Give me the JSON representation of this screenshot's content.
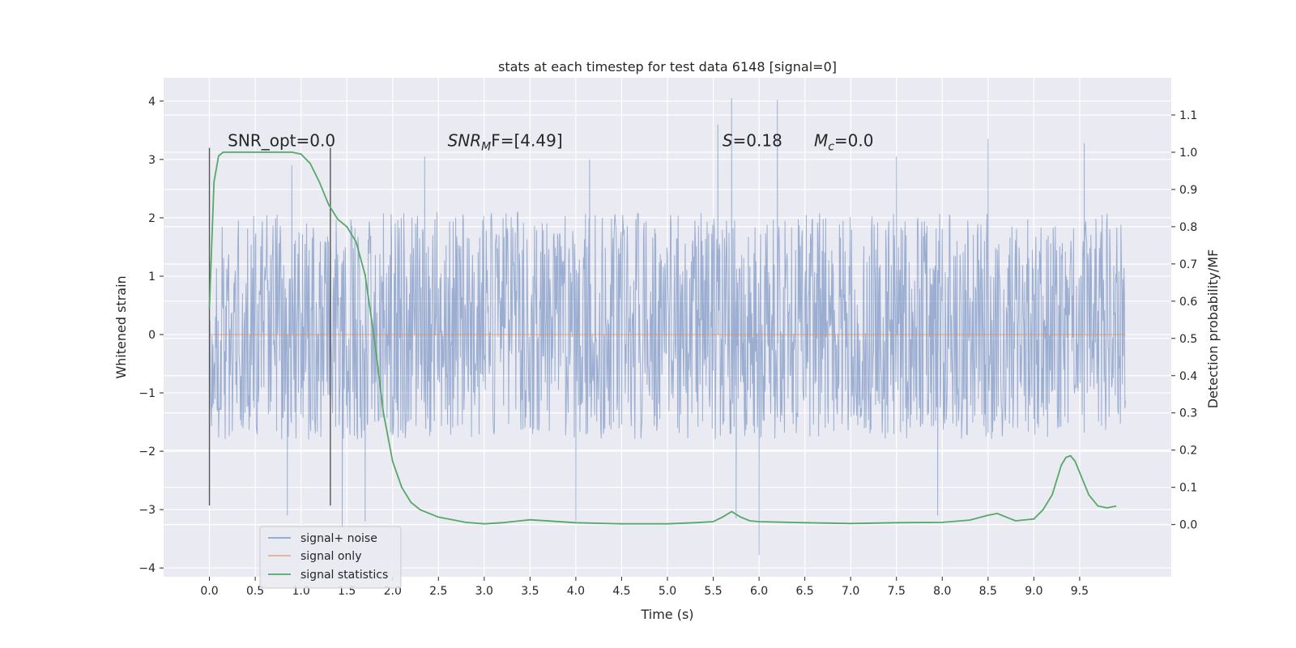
{
  "chart_data": {
    "type": "line",
    "title": "stats at each timestep for test data 6148 [signal=0]",
    "xlabel": "Time (s)",
    "ylabel": "Whitened strain",
    "y2label": "Detection probability/MF",
    "xlim": [
      -0.5,
      10.5
    ],
    "ylim": [
      -4.15,
      4.4
    ],
    "y2lim": [
      -0.14,
      1.2
    ],
    "x_ticks": [
      "0.0",
      "0.5",
      "1.0",
      "1.5",
      "2.0",
      "2.5",
      "3.0",
      "3.5",
      "4.0",
      "4.5",
      "5.0",
      "5.5",
      "6.0",
      "6.5",
      "7.0",
      "7.5",
      "8.0",
      "8.5",
      "9.0",
      "9.5"
    ],
    "y_ticks": [
      "4",
      "3",
      "2",
      "1",
      "0",
      "−1",
      "−2",
      "−3",
      "−4"
    ],
    "y2_ticks": [
      "1.1",
      "1.0",
      "0.9",
      "0.8",
      "0.7",
      "0.6",
      "0.5",
      "0.4",
      "0.3",
      "0.2",
      "0.1",
      "0.0"
    ],
    "grid": true,
    "legend_position": "lower-left",
    "annotations": [
      {
        "text": "SNR_opt=0.0",
        "x": 0.2,
        "y": 3.2
      },
      {
        "math": [
          "SNR",
          "M",
          "F=[4.49]"
        ],
        "x": 2.6,
        "y": 3.2
      },
      {
        "math": [
          "S",
          "",
          "=0.18"
        ],
        "x": 5.6,
        "y": 3.2
      },
      {
        "math": [
          "M",
          "c",
          "=0.0"
        ],
        "x": 6.6,
        "y": 3.2
      }
    ],
    "markers": [
      {
        "x": 0.0,
        "y_from": -2.93,
        "y_to": 3.2
      },
      {
        "x": 1.32,
        "y_from": -2.93,
        "y_to": 3.2
      }
    ],
    "series": [
      {
        "name": "signal+ noise",
        "axis": "left",
        "color": "#4c72b0",
        "x_range": [
          0.0,
          10.0
        ],
        "core_range": [
          -1.1,
          1.35
        ],
        "typical_range": [
          -1.8,
          2.1
        ],
        "peaks": [
          {
            "x": 5.7,
            "y": 4.05
          },
          {
            "x": 6.2,
            "y": 4.02
          },
          {
            "x": 5.55,
            "y": 3.6
          },
          {
            "x": 8.5,
            "y": 3.35
          },
          {
            "x": 9.55,
            "y": 3.28
          },
          {
            "x": 0.9,
            "y": 2.9
          },
          {
            "x": 2.35,
            "y": 3.05
          },
          {
            "x": 4.15,
            "y": 3.0
          },
          {
            "x": 7.5,
            "y": 3.05
          },
          {
            "x": 6.0,
            "y": -3.78
          },
          {
            "x": 1.45,
            "y": -3.3
          },
          {
            "x": 1.7,
            "y": -3.2
          },
          {
            "x": 5.75,
            "y": -3.15
          },
          {
            "x": 0.85,
            "y": -3.1
          },
          {
            "x": 7.95,
            "y": -3.1
          },
          {
            "x": 4.0,
            "y": -3.2
          }
        ]
      },
      {
        "name": "signal only",
        "axis": "left",
        "color": "#dd8452",
        "x": [
          0.0,
          10.0
        ],
        "y": [
          0.0,
          0.0
        ]
      },
      {
        "name": "signal statistics",
        "axis": "right",
        "color": "#55a868",
        "x": [
          0.0,
          0.05,
          0.1,
          0.15,
          0.2,
          0.3,
          0.5,
          0.7,
          0.9,
          1.0,
          1.1,
          1.2,
          1.3,
          1.4,
          1.5,
          1.6,
          1.7,
          1.8,
          1.9,
          2.0,
          2.1,
          2.2,
          2.3,
          2.5,
          2.8,
          3.0,
          3.2,
          3.5,
          4.0,
          4.5,
          5.0,
          5.3,
          5.5,
          5.6,
          5.7,
          5.8,
          5.9,
          6.0,
          6.5,
          7.0,
          7.5,
          8.0,
          8.3,
          8.5,
          8.6,
          8.7,
          8.8,
          9.0,
          9.1,
          9.2,
          9.3,
          9.35,
          9.4,
          9.45,
          9.5,
          9.6,
          9.7,
          9.8,
          9.9
        ],
        "y": [
          0.58,
          0.92,
          0.99,
          1.0,
          1.0,
          1.0,
          1.0,
          1.0,
          1.0,
          0.995,
          0.97,
          0.92,
          0.86,
          0.82,
          0.8,
          0.76,
          0.67,
          0.5,
          0.3,
          0.17,
          0.1,
          0.06,
          0.04,
          0.02,
          0.006,
          0.002,
          0.005,
          0.013,
          0.005,
          0.002,
          0.002,
          0.005,
          0.008,
          0.02,
          0.035,
          0.02,
          0.01,
          0.008,
          0.005,
          0.003,
          0.005,
          0.006,
          0.012,
          0.025,
          0.03,
          0.02,
          0.01,
          0.015,
          0.04,
          0.08,
          0.16,
          0.18,
          0.185,
          0.17,
          0.14,
          0.08,
          0.05,
          0.045,
          0.05
        ]
      }
    ]
  }
}
